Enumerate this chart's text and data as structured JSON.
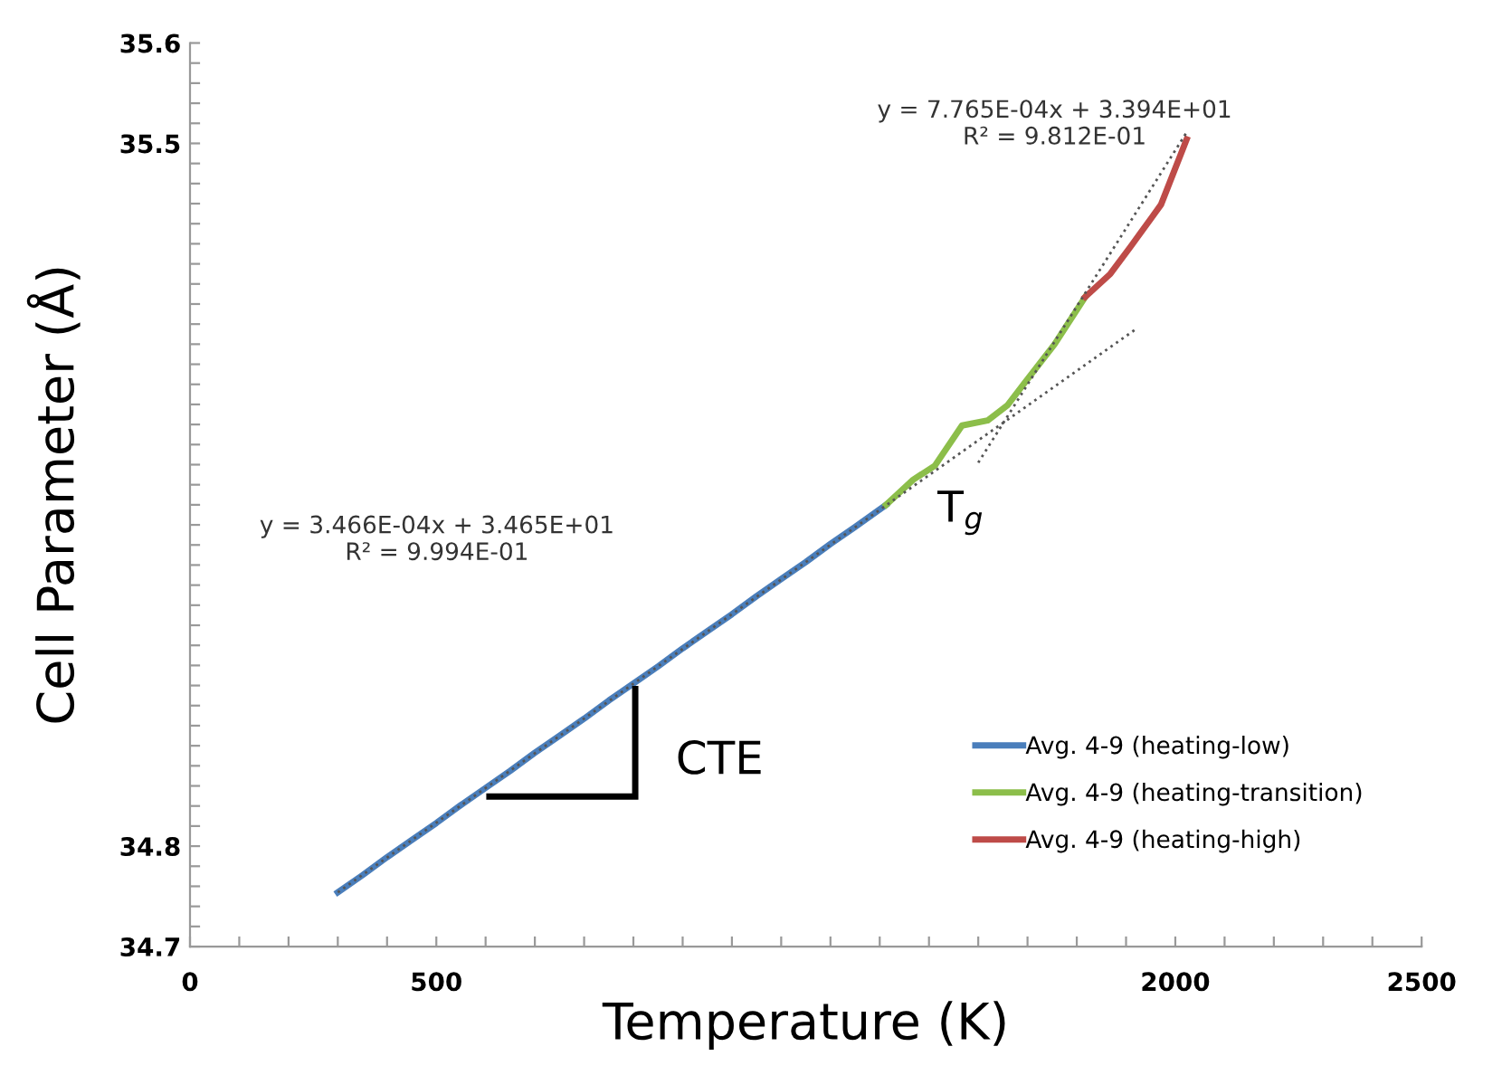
{
  "chart_data": {
    "type": "line",
    "xlabel": "Temperature (K)",
    "ylabel": "Cell Parameter (Å)",
    "xlim": [
      0,
      2500
    ],
    "ylim": [
      34.7,
      35.6
    ],
    "xticks": [
      0,
      {
        "value": 100,
        "label": null
      },
      {
        "value": 200,
        "label": null
      },
      {
        "value": 300,
        "label": null
      },
      {
        "value": 400,
        "label": null
      },
      500,
      {
        "value": 600,
        "label": null
      },
      {
        "value": 700,
        "label": null
      },
      {
        "value": 800,
        "label": null
      },
      {
        "value": 900,
        "label": null
      },
      {
        "value": 1000,
        "label": null
      },
      {
        "value": 1100,
        "label": null
      },
      {
        "value": 1200,
        "label": null
      },
      {
        "value": 1300,
        "label": null
      },
      {
        "value": 1400,
        "label": null
      },
      {
        "value": 1500,
        "label": null
      },
      {
        "value": 1600,
        "label": null
      },
      {
        "value": 1700,
        "label": null
      },
      {
        "value": 1800,
        "label": null
      },
      {
        "value": 1900,
        "label": null
      },
      2000,
      {
        "value": 2100,
        "label": null
      },
      {
        "value": 2200,
        "label": null
      },
      {
        "value": 2300,
        "label": null
      },
      {
        "value": 2400,
        "label": null
      },
      2500
    ],
    "yticks": [
      34.7,
      {
        "value": 34.72,
        "label": null
      },
      {
        "value": 34.74,
        "label": null
      },
      {
        "value": 34.76,
        "label": null
      },
      {
        "value": 34.78,
        "label": null
      },
      34.8,
      {
        "value": 34.82,
        "label": null
      },
      {
        "value": 34.84,
        "label": null
      },
      {
        "value": 34.86,
        "label": null
      },
      {
        "value": 34.88,
        "label": null
      },
      {
        "value": 34.9,
        "label": null
      },
      {
        "value": 34.92,
        "label": null
      },
      {
        "value": 34.94,
        "label": null
      },
      {
        "value": 34.96,
        "label": null
      },
      {
        "value": 34.98,
        "label": null
      },
      {
        "value": 35.0,
        "label": null
      },
      {
        "value": 35.02,
        "label": null
      },
      {
        "value": 35.04,
        "label": null
      },
      {
        "value": 35.06,
        "label": null
      },
      {
        "value": 35.08,
        "label": null
      },
      {
        "value": 35.1,
        "label": null
      },
      {
        "value": 35.12,
        "label": null
      },
      {
        "value": 35.14,
        "label": null
      },
      {
        "value": 35.16,
        "label": null
      },
      {
        "value": 35.18,
        "label": null
      },
      {
        "value": 35.2,
        "label": null
      },
      {
        "value": 35.22,
        "label": null
      },
      {
        "value": 35.24,
        "label": null
      },
      {
        "value": 35.26,
        "label": null
      },
      {
        "value": 35.28,
        "label": null
      },
      {
        "value": 35.3,
        "label": null
      },
      {
        "value": 35.32,
        "label": null
      },
      {
        "value": 35.34,
        "label": null
      },
      {
        "value": 35.36,
        "label": null
      },
      {
        "value": 35.38,
        "label": null
      },
      {
        "value": 35.4,
        "label": null
      },
      {
        "value": 35.42,
        "label": null
      },
      {
        "value": 35.44,
        "label": null
      },
      {
        "value": 35.46,
        "label": null
      },
      {
        "value": 35.48,
        "label": null
      },
      35.5,
      {
        "value": 35.52,
        "label": null
      },
      {
        "value": 35.54,
        "label": null
      },
      {
        "value": 35.56,
        "label": null
      },
      {
        "value": 35.58,
        "label": null
      },
      35.6
    ],
    "grid": false,
    "legend": "lower right",
    "marker": "none",
    "series": [
      {
        "name": "Avg. 4-9 (heating-low)",
        "color": "#4a7ebb",
        "line_style": "solid",
        "x": [
          300,
          350,
          400,
          450,
          500,
          550,
          600,
          650,
          700,
          750,
          800,
          850,
          900,
          950,
          1000,
          1050,
          1100,
          1150,
          1200,
          1250,
          1300,
          1350,
          1413
        ],
        "values": [
          34.754,
          34.771,
          34.789,
          34.806,
          34.823,
          34.841,
          34.858,
          34.875,
          34.893,
          34.91,
          34.927,
          34.945,
          34.962,
          34.979,
          34.997,
          35.014,
          35.031,
          35.049,
          35.066,
          35.083,
          35.101,
          35.118,
          35.14
        ]
      },
      {
        "name": "Avg. 4-9 (heating-transition)",
        "color": "#8cbe4a",
        "line_style": "solid",
        "x": [
          1413,
          1468,
          1512,
          1567,
          1619,
          1659,
          1692,
          1755,
          1817
        ],
        "values": [
          35.14,
          35.165,
          35.179,
          35.219,
          35.224,
          35.239,
          35.26,
          35.3,
          35.347
        ]
      },
      {
        "name": "Avg. 4-9 (heating-high)",
        "color": "#be4b48",
        "line_style": "solid",
        "x": [
          1817,
          1868,
          1909,
          1971,
          2023
        ],
        "values": [
          35.347,
          35.37,
          35.397,
          35.439,
          35.504
        ]
      },
      {
        "type": "line",
        "color": "#555555",
        "line_style": "dotted",
        "x": [
          300,
          1920
        ],
        "values": [
          34.754,
          35.315
        ]
      },
      {
        "type": "line",
        "color": "#555555",
        "line_style": "dotted",
        "x": [
          1600,
          2023
        ],
        "values": [
          35.182,
          35.511
        ]
      }
    ],
    "annotations": [
      "y = 3.466E-04x + 3.465E+01\nR² = 9.994E-01",
      "y = 7.765E-04x + 3.394E+01\nR² = 9.812E-01",
      "T$_{g}$",
      "CTE"
    ]
  }
}
